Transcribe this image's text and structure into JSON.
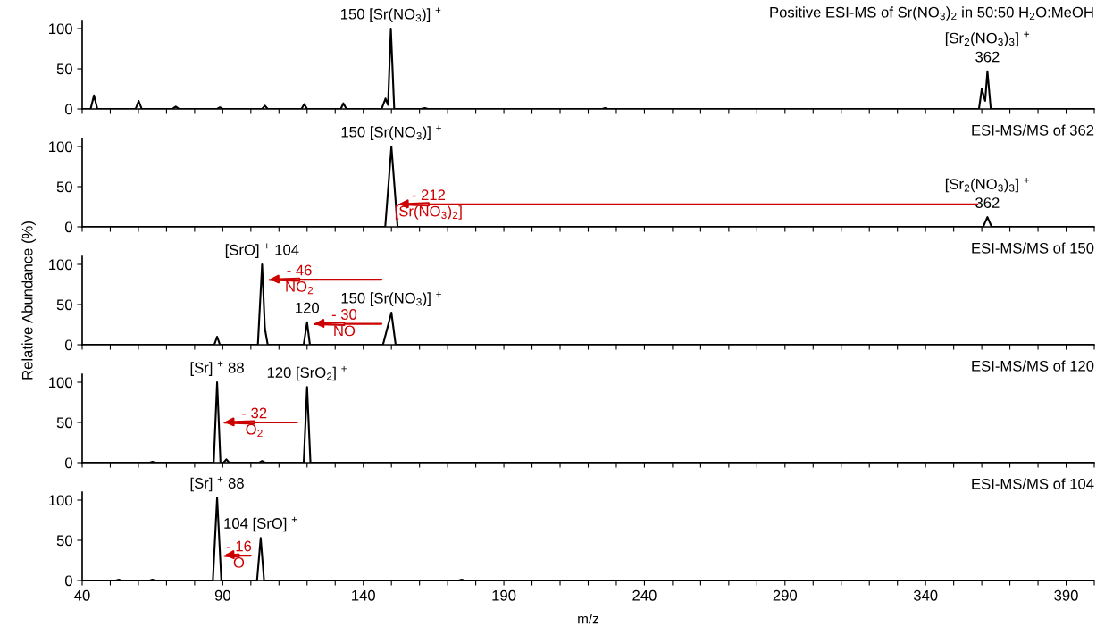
{
  "chart_data": [
    {
      "type": "line",
      "title": "Positive ESI-MS of Sr(NO$_{3}$)$_{2}$ in 50:50 H$_{2}$O:MeOH",
      "xlim": [
        40,
        400
      ],
      "ylim": [
        0,
        110
      ],
      "yticks": [
        0,
        50,
        100
      ],
      "tick_labels": "y",
      "xticks": [
        40,
        {
          "value": 50,
          "label": null
        },
        {
          "value": 60,
          "label": null
        },
        {
          "value": 70,
          "label": null
        },
        {
          "value": 80,
          "label": null
        },
        90,
        {
          "value": 100,
          "label": null
        },
        {
          "value": 110,
          "label": null
        },
        {
          "value": 120,
          "label": null
        },
        {
          "value": 130,
          "label": null
        },
        140,
        {
          "value": 150,
          "label": null
        },
        {
          "value": 160,
          "label": null
        },
        {
          "value": 170,
          "label": null
        },
        {
          "value": 180,
          "label": null
        },
        190,
        {
          "value": 200,
          "label": null
        },
        {
          "value": 210,
          "label": null
        },
        {
          "value": 220,
          "label": null
        },
        {
          "value": 230,
          "label": null
        },
        240,
        {
          "value": 250,
          "label": null
        },
        {
          "value": 260,
          "label": null
        },
        {
          "value": 270,
          "label": null
        },
        {
          "value": 280,
          "label": null
        },
        290,
        {
          "value": 300,
          "label": null
        },
        {
          "value": 310,
          "label": null
        },
        {
          "value": 320,
          "label": null
        },
        {
          "value": 330,
          "label": null
        },
        340,
        {
          "value": 350,
          "label": null
        },
        {
          "value": 360,
          "label": null
        },
        {
          "value": 370,
          "label": null
        },
        {
          "value": 380,
          "label": null
        },
        390,
        {
          "value": 400,
          "label": null
        }
      ],
      "series": [
        {
          "type": "line",
          "color": "#000000",
          "x": [
            40,
            43,
            44.2,
            45.4,
            59,
            60.1,
            61.2,
            72,
            73.3,
            74.5,
            88,
            89,
            90,
            104,
            105,
            106,
            118,
            119,
            120,
            132,
            132.9,
            134,
            146.5,
            147.9,
            148.8,
            149.8,
            151,
            160.5,
            161.9,
            163,
            225,
            226,
            227,
            359,
            360,
            361.2,
            362,
            363.2,
            400
          ],
          "values": [
            0,
            0,
            17,
            0,
            0,
            10,
            0,
            0,
            3,
            0,
            0,
            2,
            0,
            0,
            4,
            0,
            0,
            6,
            0,
            0,
            7,
            0,
            0,
            13,
            5,
            100,
            0,
            0,
            1,
            0,
            0,
            1,
            0,
            0,
            25,
            10,
            47,
            0,
            0
          ]
        }
      ],
      "annotations": [
        {
          "text": "150 [Sr(NO$_{3}$)] $^{+}$",
          "x": 149.8,
          "y": 100
        },
        {
          "text": "362",
          "x": 362,
          "y": 47
        },
        {
          "text": "[Sr$_{2}$(NO$_{3}$)$_{3}$] $^{+}$",
          "x": 362,
          "y": 47
        }
      ]
    },
    {
      "type": "line",
      "title": "ESI-MS/MS of 362",
      "xlim": [
        40,
        400
      ],
      "ylim": [
        0,
        110
      ],
      "yticks": [
        0,
        50,
        100
      ],
      "tick_labels": "y",
      "xticks": [
        40,
        {
          "value": 50,
          "label": null
        },
        {
          "value": 60,
          "label": null
        },
        {
          "value": 70,
          "label": null
        },
        {
          "value": 80,
          "label": null
        },
        90,
        {
          "value": 100,
          "label": null
        },
        {
          "value": 110,
          "label": null
        },
        {
          "value": 120,
          "label": null
        },
        {
          "value": 130,
          "label": null
        },
        140,
        {
          "value": 150,
          "label": null
        },
        {
          "value": 160,
          "label": null
        },
        {
          "value": 170,
          "label": null
        },
        {
          "value": 180,
          "label": null
        },
        190,
        {
          "value": 200,
          "label": null
        },
        {
          "value": 210,
          "label": null
        },
        {
          "value": 220,
          "label": null
        },
        {
          "value": 230,
          "label": null
        },
        240,
        {
          "value": 250,
          "label": null
        },
        {
          "value": 260,
          "label": null
        },
        {
          "value": 270,
          "label": null
        },
        {
          "value": 280,
          "label": null
        },
        290,
        {
          "value": 300,
          "label": null
        },
        {
          "value": 310,
          "label": null
        },
        {
          "value": 320,
          "label": null
        },
        {
          "value": 330,
          "label": null
        },
        340,
        {
          "value": 350,
          "label": null
        },
        {
          "value": 360,
          "label": null
        },
        {
          "value": 370,
          "label": null
        },
        {
          "value": 380,
          "label": null
        },
        390,
        {
          "value": 400,
          "label": null
        }
      ],
      "series": [
        {
          "type": "line",
          "color": "#000000",
          "x": [
            40,
            147.8,
            150,
            152.2,
            360.5,
            362,
            363.5,
            400
          ],
          "values": [
            0,
            0,
            100,
            0,
            0,
            12,
            0,
            0
          ]
        }
      ],
      "annotations": [
        {
          "text": "150 [Sr(NO$_{3}$)] $^{+}$",
          "x": 150,
          "y": 100
        },
        {
          "text": "362",
          "x": 362,
          "y": 12
        },
        {
          "text": "[Sr$_{2}$(NO$_{3}$)$_{3}$] $^{+}$",
          "x": 362,
          "y": 12
        },
        {
          "text": "- 212",
          "x": 150,
          "y": 28
        },
        {
          "text": "[Sr(NO$_{3}$)$_{2}$]",
          "x": 150,
          "y": 28
        }
      ]
    },
    {
      "type": "line",
      "title": "ESI-MS/MS of 150",
      "ylabel": "Relative Abundance (%)",
      "xlim": [
        40,
        400
      ],
      "ylim": [
        0,
        110
      ],
      "yticks": [
        0,
        50,
        100
      ],
      "tick_labels": "y",
      "xticks": [
        40,
        {
          "value": 50,
          "label": null
        },
        {
          "value": 60,
          "label": null
        },
        {
          "value": 70,
          "label": null
        },
        {
          "value": 80,
          "label": null
        },
        90,
        {
          "value": 100,
          "label": null
        },
        {
          "value": 110,
          "label": null
        },
        {
          "value": 120,
          "label": null
        },
        {
          "value": 130,
          "label": null
        },
        140,
        {
          "value": 150,
          "label": null
        },
        {
          "value": 160,
          "label": null
        },
        {
          "value": 170,
          "label": null
        },
        {
          "value": 180,
          "label": null
        },
        190,
        {
          "value": 200,
          "label": null
        },
        {
          "value": 210,
          "label": null
        },
        {
          "value": 220,
          "label": null
        },
        {
          "value": 230,
          "label": null
        },
        240,
        {
          "value": 250,
          "label": null
        },
        {
          "value": 260,
          "label": null
        },
        {
          "value": 270,
          "label": null
        },
        {
          "value": 280,
          "label": null
        },
        290,
        {
          "value": 300,
          "label": null
        },
        {
          "value": 310,
          "label": null
        },
        {
          "value": 320,
          "label": null
        },
        {
          "value": 330,
          "label": null
        },
        340,
        {
          "value": 350,
          "label": null
        },
        {
          "value": 360,
          "label": null
        },
        {
          "value": 370,
          "label": null
        },
        {
          "value": 380,
          "label": null
        },
        390,
        {
          "value": 400,
          "label": null
        }
      ],
      "series": [
        {
          "type": "line",
          "color": "#000000",
          "x": [
            40,
            87,
            88,
            89,
            102.5,
            104,
            105,
            106,
            118.8,
            120,
            121,
            147,
            150,
            151.5,
            400
          ],
          "values": [
            0,
            0,
            10,
            0,
            0,
            100,
            20,
            0,
            0,
            28,
            0,
            0,
            40,
            0,
            0
          ]
        }
      ],
      "annotations": [
        {
          "text": "[SrO] $^{+}$ 104",
          "x": 104,
          "y": 100
        },
        {
          "text": "120",
          "x": 120,
          "y": 28
        },
        {
          "text": "150 [Sr(NO$_{3}$)] $^{+}$",
          "x": 150,
          "y": 40
        },
        {
          "text": "- 46",
          "x": 104,
          "y": 81
        },
        {
          "text": "NO$_{2}$",
          "x": 104,
          "y": 81
        },
        {
          "text": "- 30",
          "x": 120,
          "y": 26
        },
        {
          "text": "NO",
          "x": 120,
          "y": 26
        }
      ]
    },
    {
      "type": "line",
      "title": "ESI-MS/MS of 120",
      "xlim": [
        40,
        400
      ],
      "ylim": [
        0,
        110
      ],
      "yticks": [
        0,
        50,
        100
      ],
      "tick_labels": "y",
      "xticks": [
        40,
        {
          "value": 50,
          "label": null
        },
        {
          "value": 60,
          "label": null
        },
        {
          "value": 70,
          "label": null
        },
        {
          "value": 80,
          "label": null
        },
        90,
        {
          "value": 100,
          "label": null
        },
        {
          "value": 110,
          "label": null
        },
        {
          "value": 120,
          "label": null
        },
        {
          "value": 130,
          "label": null
        },
        140,
        {
          "value": 150,
          "label": null
        },
        {
          "value": 160,
          "label": null
        },
        {
          "value": 170,
          "label": null
        },
        {
          "value": 180,
          "label": null
        },
        190,
        {
          "value": 200,
          "label": null
        },
        {
          "value": 210,
          "label": null
        },
        {
          "value": 220,
          "label": null
        },
        {
          "value": 230,
          "label": null
        },
        240,
        {
          "value": 250,
          "label": null
        },
        {
          "value": 260,
          "label": null
        },
        {
          "value": 270,
          "label": null
        },
        {
          "value": 280,
          "label": null
        },
        290,
        {
          "value": 300,
          "label": null
        },
        {
          "value": 310,
          "label": null
        },
        {
          "value": 320,
          "label": null
        },
        {
          "value": 330,
          "label": null
        },
        340,
        {
          "value": 350,
          "label": null
        },
        {
          "value": 360,
          "label": null
        },
        {
          "value": 370,
          "label": null
        },
        {
          "value": 380,
          "label": null
        },
        390,
        {
          "value": 400,
          "label": null
        }
      ],
      "series": [
        {
          "type": "line",
          "color": "#000000",
          "x": [
            40,
            64,
            65,
            66,
            86.8,
            88,
            89.2,
            90.3,
            91.3,
            92.3,
            103,
            104,
            105,
            118.8,
            120,
            121.2,
            400
          ],
          "values": [
            0,
            0,
            1,
            0,
            0,
            100,
            0,
            0,
            4,
            0,
            0,
            2,
            0,
            0,
            94,
            0,
            0
          ]
        }
      ],
      "annotations": [
        {
          "text": "[Sr] $^{+}$ 88",
          "x": 88,
          "y": 100
        },
        {
          "text": "120 [SrO$_{2}$] $^{+}$",
          "x": 120,
          "y": 94
        },
        {
          "text": "- 32",
          "x": 88,
          "y": 50
        },
        {
          "text": "O$_{2}$",
          "x": 88,
          "y": 50
        }
      ]
    },
    {
      "type": "line",
      "title": "ESI-MS/MS of 104",
      "xlabel": "m/z",
      "xlim": [
        40,
        400
      ],
      "ylim": [
        0,
        110
      ],
      "yticks": [
        0,
        50,
        100
      ],
      "xticks": [
        40,
        {
          "value": 50,
          "label": null
        },
        {
          "value": 60,
          "label": null
        },
        {
          "value": 70,
          "label": null
        },
        {
          "value": 80,
          "label": null
        },
        90,
        {
          "value": 100,
          "label": null
        },
        {
          "value": 110,
          "label": null
        },
        {
          "value": 120,
          "label": null
        },
        {
          "value": 130,
          "label": null
        },
        140,
        {
          "value": 150,
          "label": null
        },
        {
          "value": 160,
          "label": null
        },
        {
          "value": 170,
          "label": null
        },
        {
          "value": 180,
          "label": null
        },
        190,
        {
          "value": 200,
          "label": null
        },
        {
          "value": 210,
          "label": null
        },
        {
          "value": 220,
          "label": null
        },
        {
          "value": 230,
          "label": null
        },
        240,
        {
          "value": 250,
          "label": null
        },
        {
          "value": 260,
          "label": null
        },
        {
          "value": 270,
          "label": null
        },
        {
          "value": 280,
          "label": null
        },
        290,
        {
          "value": 300,
          "label": null
        },
        {
          "value": 310,
          "label": null
        },
        {
          "value": 320,
          "label": null
        },
        {
          "value": 330,
          "label": null
        },
        340,
        {
          "value": 350,
          "label": null
        },
        {
          "value": 360,
          "label": null
        },
        {
          "value": 370,
          "label": null
        },
        {
          "value": 380,
          "label": null
        },
        390,
        {
          "value": 400,
          "label": null
        }
      ],
      "series": [
        {
          "type": "line",
          "color": "#000000",
          "x": [
            40,
            52,
            53,
            54,
            64,
            65,
            66,
            86.5,
            88,
            89.5,
            102.2,
            103.5,
            104.7,
            174,
            175,
            176,
            400
          ],
          "values": [
            0,
            0,
            1,
            0,
            0,
            1,
            0,
            0,
            103,
            0,
            0,
            53,
            0,
            0,
            1,
            0,
            0
          ]
        }
      ],
      "annotations": [
        {
          "text": "[Sr] $^{+}$ 88",
          "x": 88,
          "y": 103
        },
        {
          "text": "104 [SrO] $^{+}$",
          "x": 103.5,
          "y": 53
        },
        {
          "text": "- 16",
          "x": 88,
          "y": 31
        },
        {
          "text": "O",
          "x": 88,
          "y": 31
        }
      ]
    }
  ]
}
